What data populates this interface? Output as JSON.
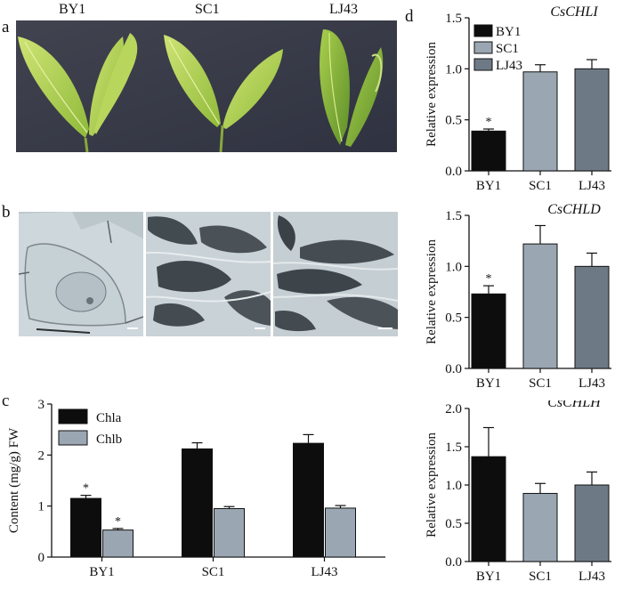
{
  "panels": {
    "a": {
      "letter": "a",
      "labels": [
        "BY1",
        "SC1",
        "LJ43"
      ]
    },
    "b": {
      "letter": "b"
    },
    "c": {
      "letter": "c"
    },
    "d": {
      "letter": "d"
    }
  },
  "colors": {
    "black": "#0d0d0d",
    "light": "#9aa7b2",
    "mid": "#6d7a86",
    "photo_bg": "#3a3d4a",
    "leaf_light": "#b6d65a",
    "leaf_dark": "#86b23a",
    "micro_bg": "#d7dfe3",
    "micro_dark": "#434b50"
  },
  "chart_data": [
    {
      "type": "bar",
      "panel": "c",
      "ylabel": "Content (mg/g) FW",
      "categories": [
        "BY1",
        "SC1",
        "LJ43"
      ],
      "ylim": [
        0,
        3
      ],
      "yticks": [
        "0",
        "1",
        "2",
        "3"
      ],
      "legend": "top-left",
      "series": [
        {
          "name": "Chla",
          "color": "#0d0d0d",
          "values": [
            1.15,
            2.12,
            2.23
          ],
          "errors": [
            0.06,
            0.12,
            0.17
          ],
          "marks": [
            "*",
            "",
            ""
          ]
        },
        {
          "name": "Chlb",
          "color": "#9aa7b2",
          "values": [
            0.53,
            0.95,
            0.96
          ],
          "errors": [
            0.03,
            0.04,
            0.05
          ],
          "marks": [
            "*",
            "",
            ""
          ]
        }
      ]
    },
    {
      "type": "bar",
      "panel": "d",
      "title": "CsCHLI",
      "ylabel": "Relative expression",
      "categories": [
        "BY1",
        "SC1",
        "LJ43"
      ],
      "ylim": [
        0,
        1.5
      ],
      "yticks": [
        "0.0",
        "0.5",
        "1.0",
        "1.5"
      ],
      "legend": [
        "BY1",
        "SC1",
        "LJ43"
      ],
      "colors": [
        "#0d0d0d",
        "#9aa7b2",
        "#6d7a86"
      ],
      "values": [
        0.39,
        0.97,
        1.0
      ],
      "errors": [
        0.02,
        0.07,
        0.09
      ],
      "marks": [
        "*",
        "",
        ""
      ]
    },
    {
      "type": "bar",
      "panel": "d",
      "title": "CsCHLD",
      "ylabel": "Relative expression",
      "categories": [
        "BY1",
        "SC1",
        "LJ43"
      ],
      "ylim": [
        0,
        1.5
      ],
      "yticks": [
        "0.0",
        "0.5",
        "1.0",
        "1.5"
      ],
      "colors": [
        "#0d0d0d",
        "#9aa7b2",
        "#6d7a86"
      ],
      "values": [
        0.73,
        1.22,
        1.0
      ],
      "errors": [
        0.08,
        0.18,
        0.13
      ],
      "marks": [
        "*",
        "",
        ""
      ]
    },
    {
      "type": "bar",
      "panel": "d",
      "title": "CsCHLH",
      "ylabel": "Relative expression",
      "categories": [
        "BY1",
        "SC1",
        "LJ43"
      ],
      "ylim": [
        0,
        2.0
      ],
      "yticks": [
        "0.0",
        "0.5",
        "1.0",
        "1.5",
        "2.0"
      ],
      "colors": [
        "#0d0d0d",
        "#9aa7b2",
        "#6d7a86"
      ],
      "values": [
        1.37,
        0.89,
        1.0
      ],
      "errors": [
        0.38,
        0.13,
        0.17
      ],
      "marks": [
        "",
        "",
        ""
      ]
    }
  ]
}
